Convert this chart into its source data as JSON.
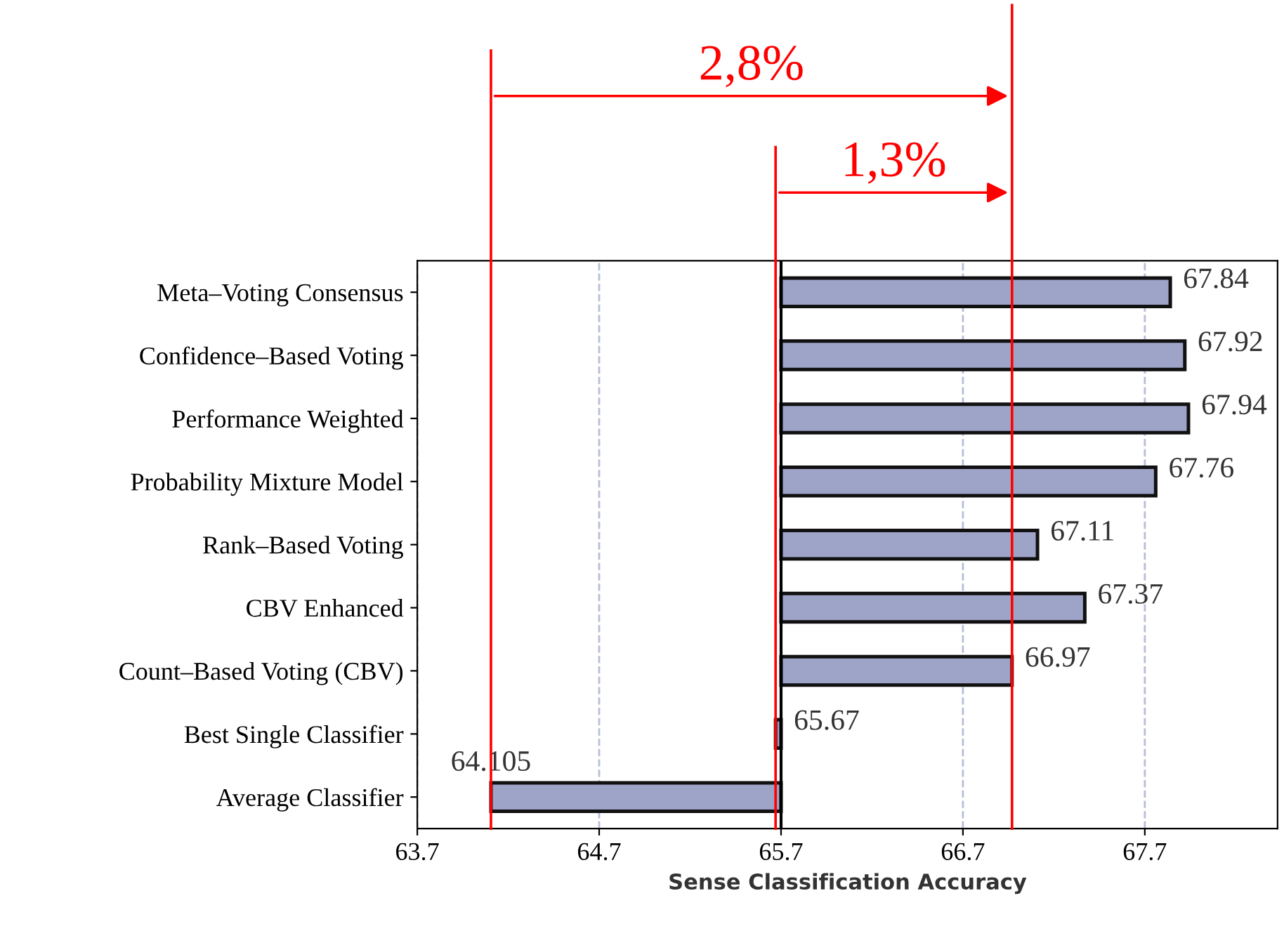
{
  "chart_data": {
    "type": "bar",
    "orientation": "horizontal",
    "categories": [
      "Meta–Voting Consensus",
      "Confidence–Based Voting",
      "Performance Weighted",
      "Probability Mixture Model",
      "Rank–Based Voting",
      "CBV Enhanced",
      "Count–Based Voting (CBV)",
      "Best Single Classifier",
      "Average Classifier"
    ],
    "values": [
      2.14,
      2.22,
      2.24,
      2.06,
      1.41,
      1.67,
      1.27,
      -0.03,
      -1.595
    ],
    "base": [
      65.7,
      65.7,
      65.7,
      65.7,
      65.7,
      65.7,
      65.7,
      65.7,
      65.7
    ],
    "value_labels": [
      "67.84",
      "67.92",
      "67.94",
      "67.76",
      "67.11",
      "67.37",
      "66.97",
      "65.67",
      "64.105"
    ],
    "color": "#9ea3c8",
    "xlabel": "Sense Classification Accuracy",
    "xlim": [
      63.7,
      68.43
    ],
    "xticks": [
      63.7,
      64.7,
      65.7,
      66.7,
      67.7
    ],
    "grid": "x",
    "ref_lines": [
      {
        "axis": "x",
        "value": 65.7,
        "color": "#000000"
      },
      {
        "axis": "x",
        "value": 64.105,
        "color": "#ff0000"
      },
      {
        "axis": "x",
        "value": 65.67,
        "color": "#ff0000"
      },
      {
        "axis": "x",
        "value": 66.97,
        "color": "#ff0000"
      }
    ],
    "annotations": [
      "2,8%",
      "1,3%"
    ]
  }
}
